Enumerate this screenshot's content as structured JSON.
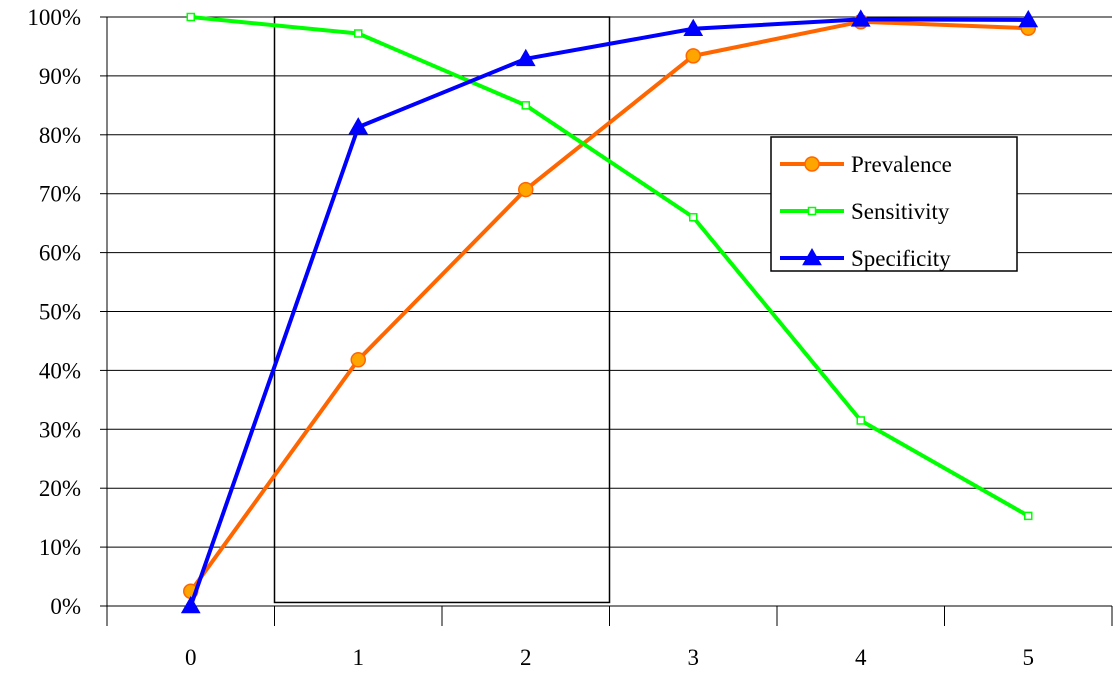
{
  "chart_data": {
    "type": "line",
    "title": "",
    "xlabel": "",
    "ylabel": "",
    "x": [
      0,
      1,
      2,
      3,
      4,
      5
    ],
    "x_tick_labels": [
      "0",
      "1",
      "2",
      "3",
      "4",
      "5"
    ],
    "ylim": [
      0,
      100
    ],
    "y_tick_values": [
      0,
      10,
      20,
      30,
      40,
      50,
      60,
      70,
      80,
      90,
      100
    ],
    "y_tick_labels": [
      "0%",
      "10%",
      "20%",
      "30%",
      "40%",
      "50%",
      "60%",
      "70%",
      "80%",
      "90%",
      "100%"
    ],
    "grid": "horizontal",
    "legend_position": "right",
    "highlight_box_x_range": [
      0.5,
      2.5
    ],
    "series": [
      {
        "name": "Prevalence",
        "color": "#FF6600",
        "marker": "circle",
        "values": [
          2.5,
          41.8,
          70.7,
          93.4,
          99.2,
          98.1
        ]
      },
      {
        "name": "Sensitivity",
        "color": "#00FF00",
        "marker": "square",
        "values": [
          100,
          97.2,
          85.0,
          66.0,
          31.5,
          15.3
        ]
      },
      {
        "name": "Specificity",
        "color": "#0000FF",
        "marker": "triangle",
        "values": [
          0,
          81.3,
          92.9,
          98.0,
          99.6,
          99.5
        ]
      }
    ]
  }
}
